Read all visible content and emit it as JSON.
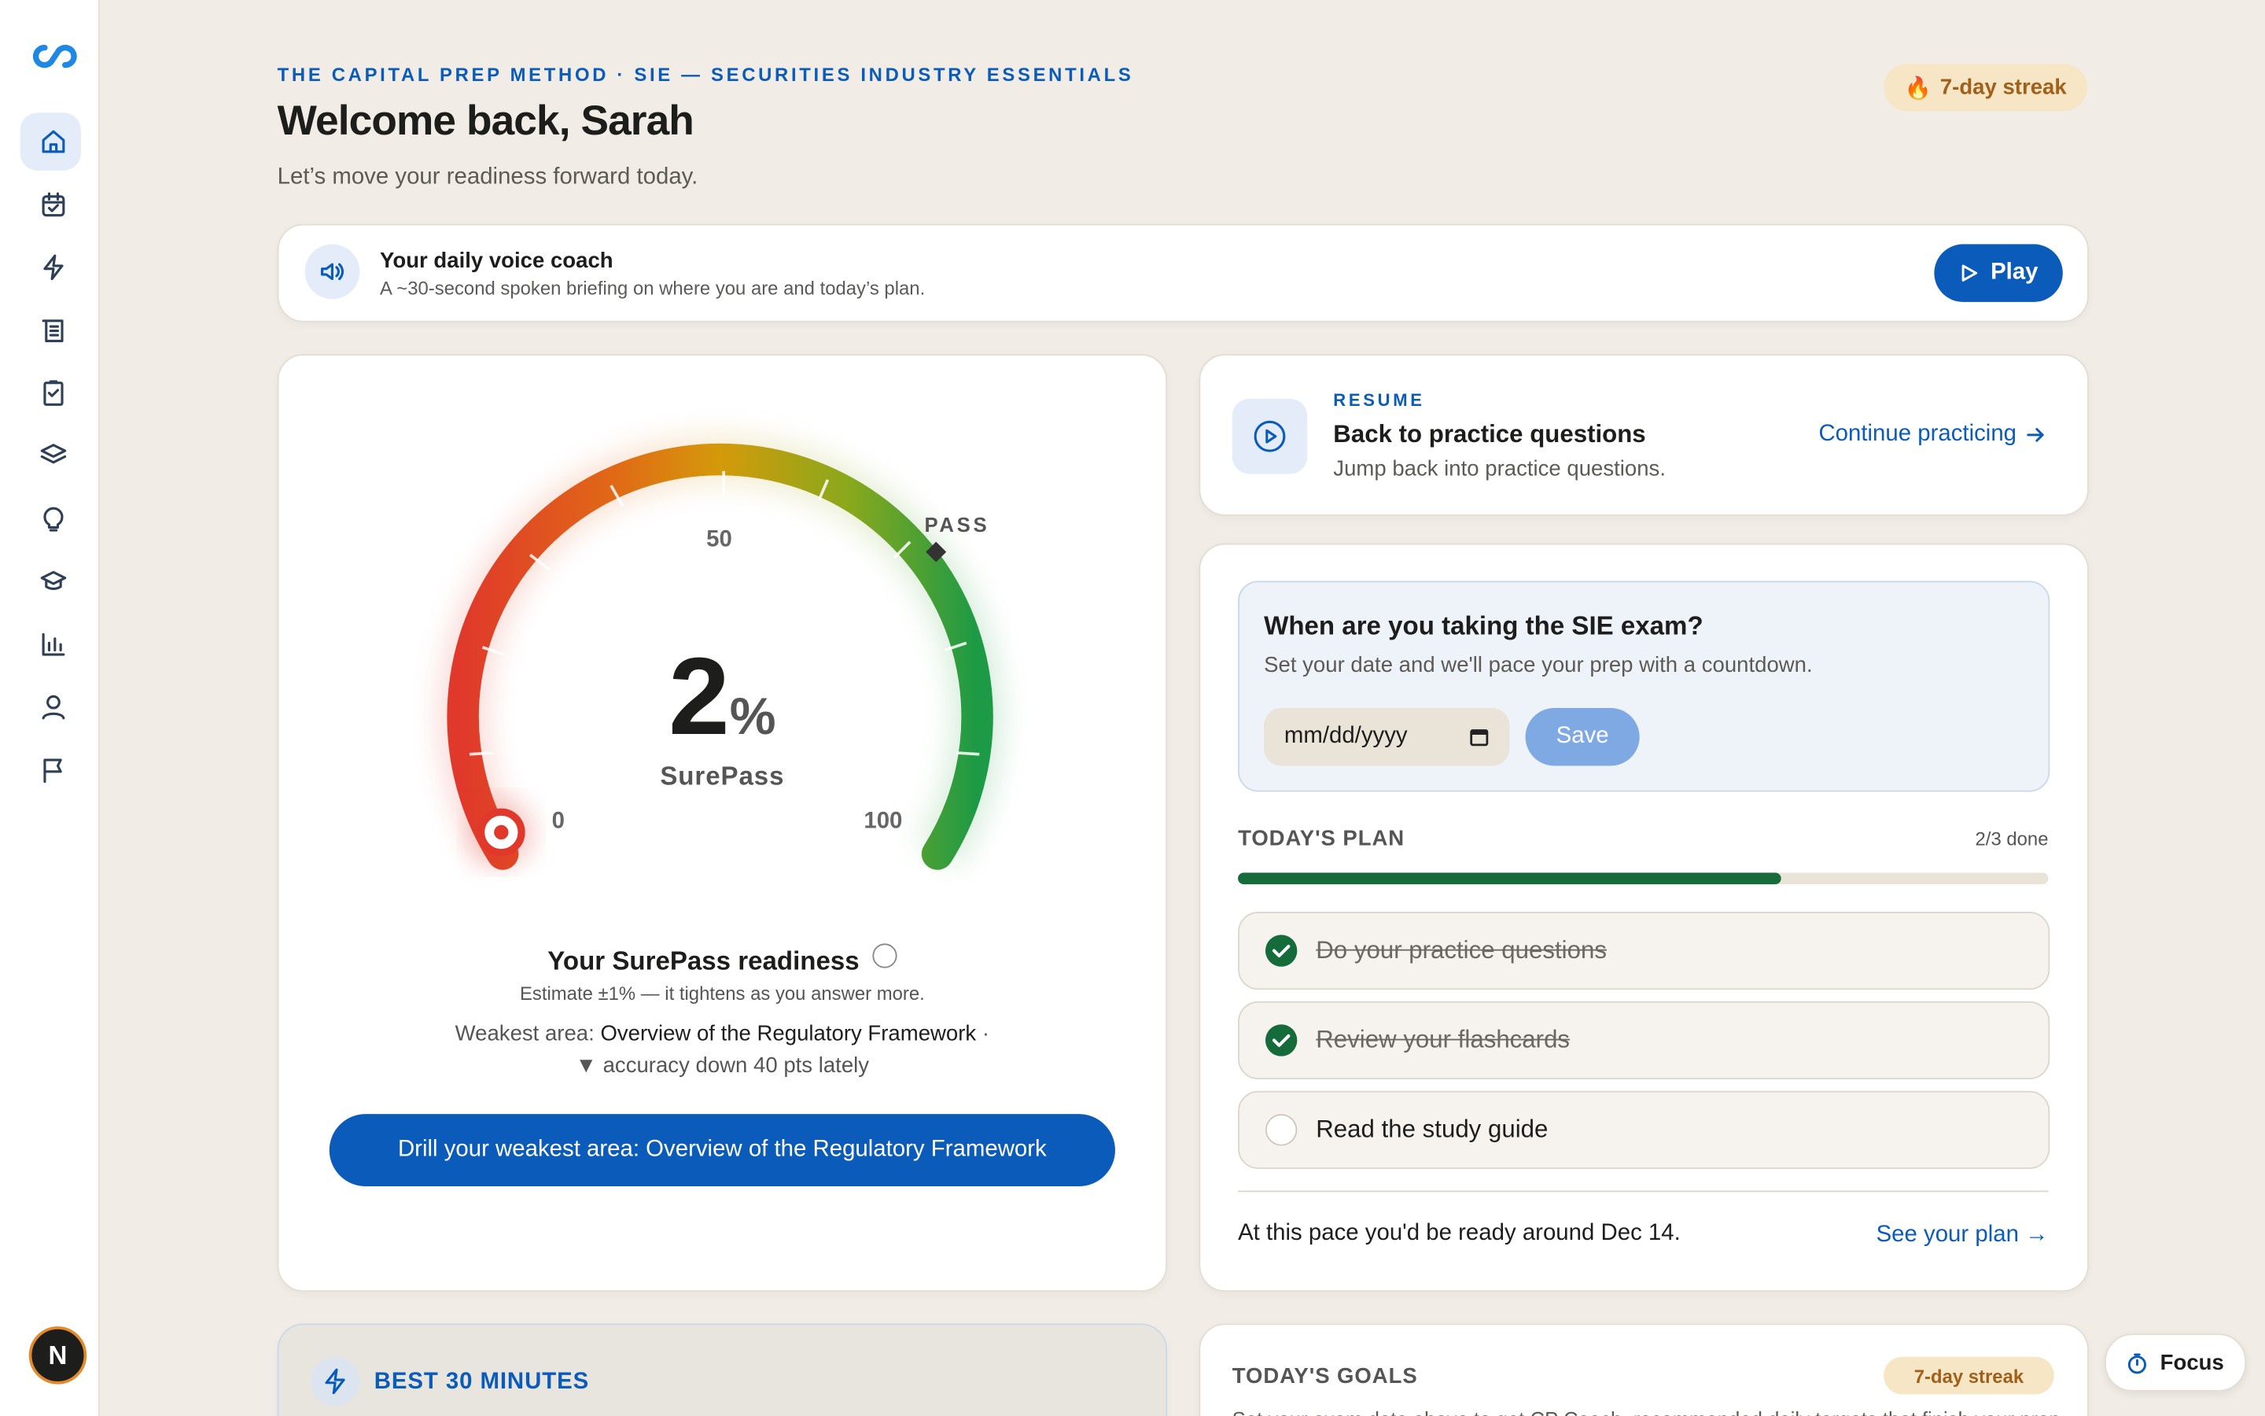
{
  "sidebar": {
    "avatar": "N"
  },
  "header": {
    "eyebrow": "THE CAPITAL PREP METHOD · SIE — SECURITIES INDUSTRY ESSENTIALS",
    "title": "Welcome back, Sarah",
    "subtitle": "Let’s move your readiness forward today.",
    "streak": "7-day streak"
  },
  "voice_coach": {
    "title": "Your daily voice coach",
    "description": "A ~30-second spoken briefing on where you are and today’s plan.",
    "button": "Play"
  },
  "readiness": {
    "value": "2",
    "unit": "%",
    "label": "SurePass",
    "scale_min": "0",
    "scale_mid": "50",
    "scale_max": "100",
    "pass_label": "PASS",
    "title": "Your SurePass readiness",
    "estimate": "Estimate ±1% — it tightens as you answer more.",
    "weakest_prefix": "Weakest area:",
    "weakest_area": "Overview of the Regulatory Framework",
    "trend": "▼ accuracy down 40 pts lately",
    "button": "Drill your weakest area: Overview of the Regulatory Framework"
  },
  "resume": {
    "eyebrow": "RESUME",
    "title": "Back to practice questions",
    "description": "Jump back into practice questions.",
    "link": "Continue practicing"
  },
  "exam_date": {
    "question": "When are you taking the SIE exam?",
    "description": "Set your date and we'll pace your prep with a countdown.",
    "placeholder": "mm/dd/yyyy",
    "button": "Save"
  },
  "todays_plan": {
    "title": "TODAY'S PLAN",
    "progress": "2/3 done",
    "tasks": [
      {
        "label": "Do your practice questions",
        "done": true
      },
      {
        "label": "Review your flashcards",
        "done": true
      },
      {
        "label": "Read the study guide",
        "done": false
      }
    ],
    "footer": "At this pace you'd be ready around Dec 14.",
    "link": "See your plan →"
  },
  "best_30": {
    "title": "BEST 30 MINUTES"
  },
  "todays_goals": {
    "title": "TODAY'S GOALS",
    "streak": "7-day streak",
    "description": "Set your exam date above to get CP Coach–recommended daily targets that finish your prep"
  },
  "focus": {
    "label": "Focus"
  }
}
